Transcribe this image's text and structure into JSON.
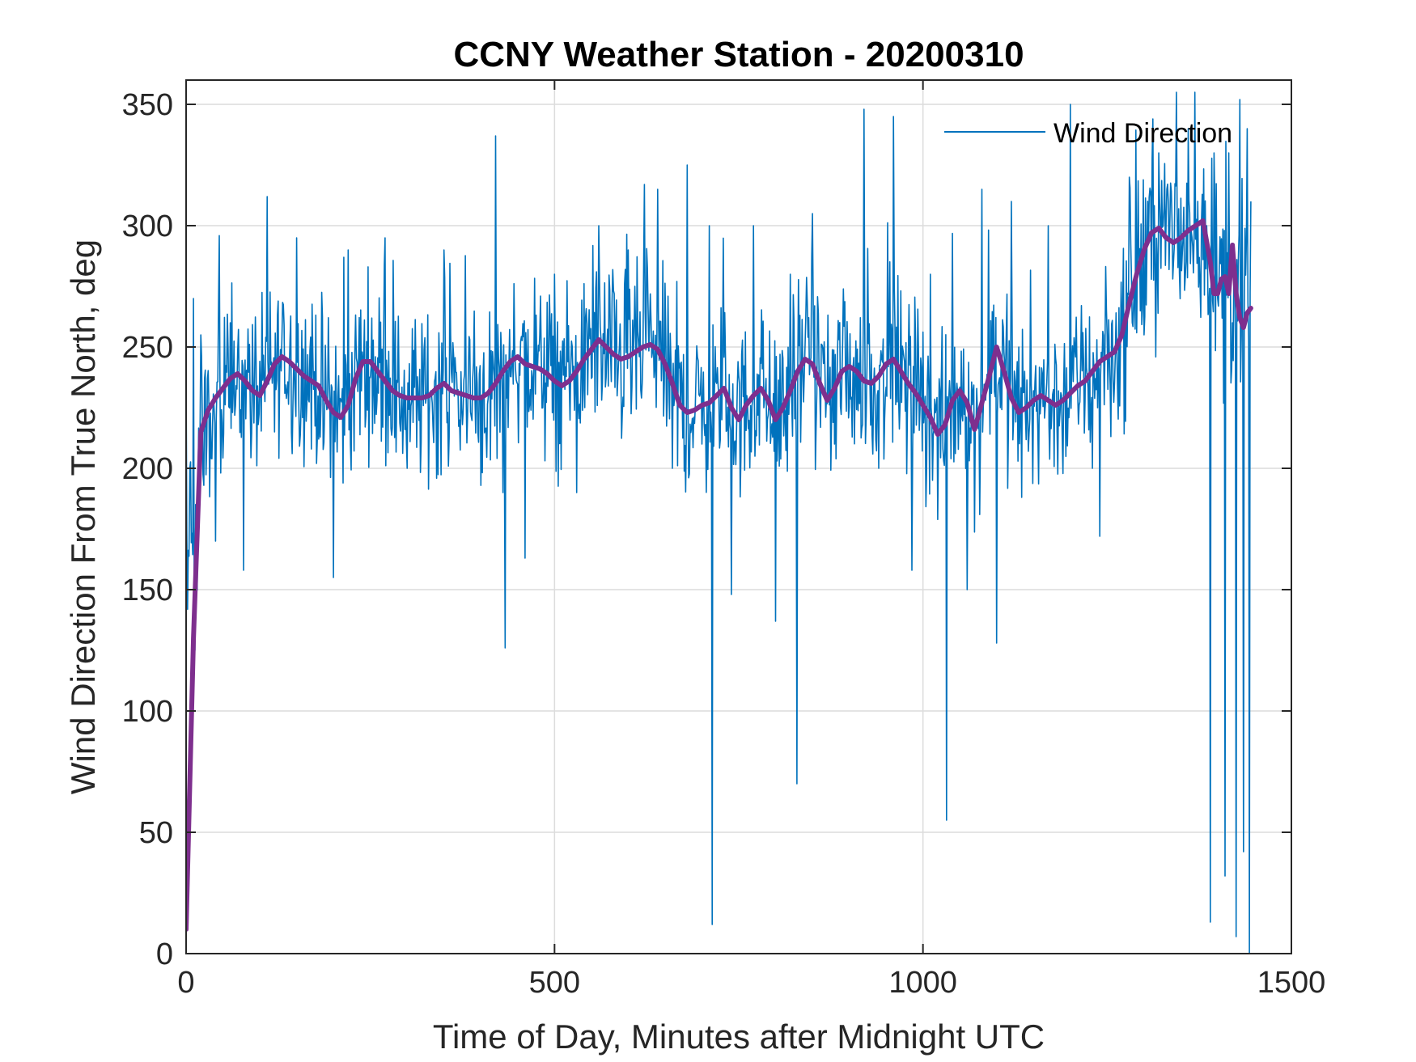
{
  "chart_data": {
    "type": "line",
    "title": "CCNY Weather Station - 20200310",
    "xlabel": "Time of Day, Minutes after Midnight UTC",
    "ylabel": "Wind Direction From True North, deg",
    "xlim": [
      0,
      1500
    ],
    "ylim": [
      0,
      360
    ],
    "xticks": [
      0,
      500,
      1000,
      1500
    ],
    "yticks": [
      0,
      50,
      100,
      150,
      200,
      250,
      300,
      350
    ],
    "grid": true,
    "legend": {
      "placement": "top-right",
      "entries": [
        "Wind Direction"
      ]
    },
    "colors": {
      "raw": "#0072BD",
      "smoothed": "#7E2F8E"
    },
    "series": [
      {
        "name": "Wind Direction",
        "sampling": "1-minute samples, x = 0 to 1440",
        "envelope_points": [
          [
            0,
            240
          ],
          [
            5,
            200
          ],
          [
            10,
            270
          ],
          [
            12,
            125
          ],
          [
            20,
            255
          ],
          [
            40,
            170
          ],
          [
            60,
            260
          ],
          [
            78,
            158
          ],
          [
            110,
            312
          ],
          [
            120,
            215
          ],
          [
            150,
            295
          ],
          [
            200,
            155
          ],
          [
            220,
            290
          ],
          [
            270,
            295
          ],
          [
            300,
            200
          ],
          [
            350,
            290
          ],
          [
            380,
            230
          ],
          [
            420,
            337
          ],
          [
            430,
            190
          ],
          [
            433,
            126
          ],
          [
            460,
            163
          ],
          [
            480,
            255
          ],
          [
            500,
            280
          ],
          [
            530,
            190
          ],
          [
            560,
            300
          ],
          [
            600,
            290
          ],
          [
            640,
            315
          ],
          [
            660,
            200
          ],
          [
            680,
            325
          ],
          [
            700,
            210
          ],
          [
            710,
            300
          ],
          [
            714,
            12
          ],
          [
            720,
            235
          ],
          [
            740,
            148
          ],
          [
            770,
            300
          ],
          [
            800,
            137
          ],
          [
            820,
            280
          ],
          [
            829,
            70
          ],
          [
            850,
            305
          ],
          [
            880,
            210
          ],
          [
            920,
            348
          ],
          [
            940,
            200
          ],
          [
            960,
            345
          ],
          [
            985,
            158
          ],
          [
            1010,
            280
          ],
          [
            1030,
            212
          ],
          [
            1032,
            55
          ],
          [
            1060,
            150
          ],
          [
            1080,
            315
          ],
          [
            1100,
            128
          ],
          [
            1120,
            310
          ],
          [
            1150,
            232
          ],
          [
            1170,
            300
          ],
          [
            1200,
            350
          ],
          [
            1230,
            200
          ],
          [
            1240,
            172
          ],
          [
            1250,
            255
          ],
          [
            1260,
            235
          ],
          [
            1280,
            320
          ],
          [
            1300,
            255
          ],
          [
            1320,
            330
          ],
          [
            1340,
            285
          ],
          [
            1360,
            340
          ],
          [
            1385,
            300
          ],
          [
            1390,
            13
          ],
          [
            1395,
            330
          ],
          [
            1400,
            270
          ],
          [
            1410,
            32
          ],
          [
            1415,
            330
          ],
          [
            1420,
            260
          ],
          [
            1425,
            7
          ],
          [
            1430,
            352
          ],
          [
            1435,
            42
          ],
          [
            1440,
            340
          ],
          [
            1443,
            0
          ],
          [
            1445,
            310
          ]
        ]
      },
      {
        "name": "",
        "x": [
          0,
          10,
          20,
          30,
          40,
          50,
          60,
          70,
          80,
          90,
          100,
          110,
          120,
          130,
          140,
          150,
          160,
          170,
          180,
          190,
          200,
          210,
          220,
          230,
          240,
          250,
          260,
          270,
          280,
          290,
          300,
          310,
          320,
          330,
          340,
          350,
          360,
          370,
          380,
          390,
          400,
          410,
          420,
          430,
          440,
          450,
          460,
          470,
          480,
          490,
          500,
          510,
          520,
          530,
          540,
          550,
          560,
          570,
          580,
          590,
          600,
          610,
          620,
          630,
          640,
          650,
          660,
          670,
          680,
          690,
          700,
          710,
          720,
          730,
          740,
          750,
          760,
          770,
          780,
          790,
          800,
          810,
          820,
          830,
          840,
          850,
          860,
          870,
          880,
          890,
          900,
          910,
          920,
          930,
          940,
          950,
          960,
          970,
          980,
          990,
          1000,
          1010,
          1020,
          1030,
          1040,
          1050,
          1060,
          1070,
          1080,
          1090,
          1100,
          1110,
          1120,
          1130,
          1140,
          1150,
          1160,
          1170,
          1180,
          1190,
          1200,
          1210,
          1220,
          1230,
          1240,
          1250,
          1260,
          1270,
          1280,
          1290,
          1300,
          1310,
          1320,
          1330,
          1340,
          1350,
          1360,
          1370,
          1380,
          1390,
          1395,
          1400,
          1405,
          1410,
          1415,
          1420,
          1425,
          1430,
          1435,
          1440,
          1445
        ],
        "y": [
          10,
          130,
          215,
          224,
          229,
          233,
          237,
          239,
          236,
          232,
          230,
          236,
          243,
          246,
          244,
          241,
          238,
          236,
          234,
          228,
          223,
          221,
          226,
          237,
          244,
          244,
          240,
          236,
          232,
          230,
          229,
          229,
          229,
          230,
          233,
          235,
          232,
          231,
          230,
          229,
          229,
          231,
          235,
          240,
          244,
          246,
          243,
          242,
          241,
          239,
          236,
          234,
          236,
          240,
          245,
          249,
          253,
          250,
          247,
          245,
          246,
          248,
          250,
          251,
          249,
          243,
          235,
          226,
          223,
          224,
          226,
          227,
          230,
          233,
          225,
          220,
          226,
          230,
          233,
          228,
          220,
          225,
          232,
          240,
          245,
          243,
          235,
          228,
          233,
          240,
          242,
          240,
          236,
          235,
          238,
          243,
          245,
          240,
          235,
          231,
          226,
          221,
          214,
          218,
          228,
          232,
          227,
          216,
          227,
          238,
          250,
          240,
          229,
          223,
          225,
          228,
          230,
          228,
          226,
          228,
          231,
          234,
          236,
          240,
          244,
          246,
          248,
          255,
          268,
          280,
          290,
          297,
          299,
          295,
          293,
          295,
          298,
          300,
          302,
          285,
          272,
          272,
          278,
          279,
          272,
          292,
          272,
          262,
          258,
          264,
          266
        ]
      }
    ]
  }
}
